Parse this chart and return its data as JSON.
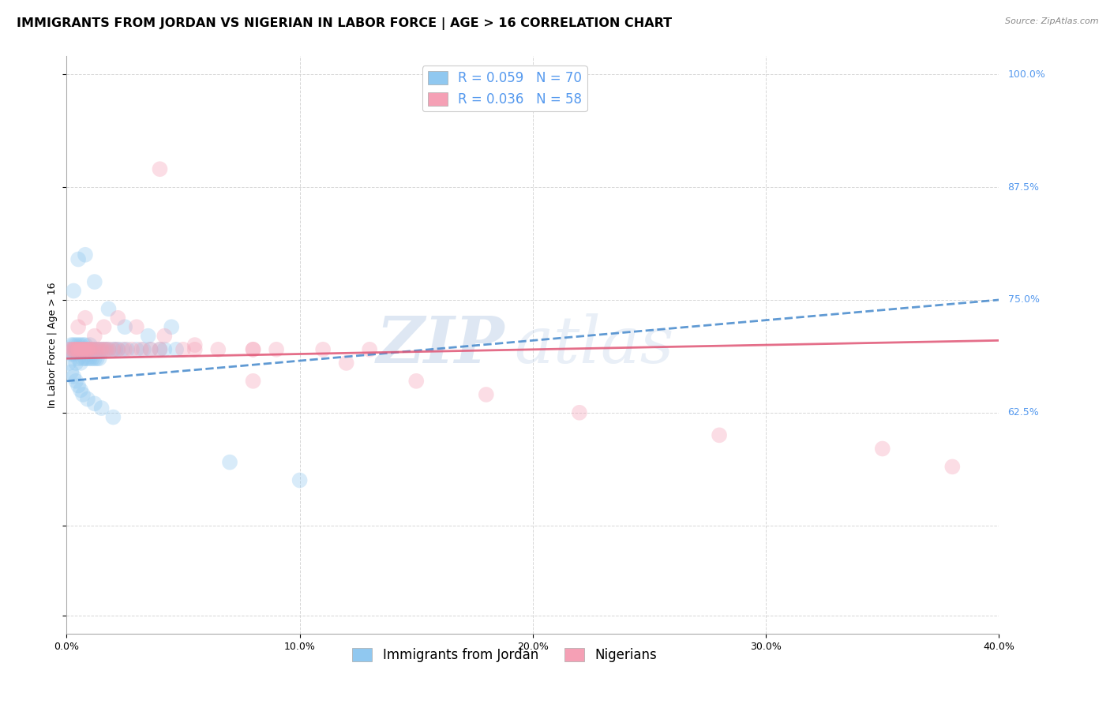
{
  "title": "IMMIGRANTS FROM JORDAN VS NIGERIAN IN LABOR FORCE | AGE > 16 CORRELATION CHART",
  "source": "Source: ZipAtlas.com",
  "ylabel": "In Labor Force | Age > 16",
  "xlim": [
    0.0,
    0.4
  ],
  "ylim": [
    0.38,
    1.02
  ],
  "yticks": [
    0.4,
    0.5,
    0.625,
    0.75,
    0.875,
    1.0
  ],
  "xticks": [
    0.0,
    0.1,
    0.2,
    0.3,
    0.4
  ],
  "jordan_R": "0.059",
  "jordan_N": "70",
  "nigerian_R": "0.036",
  "nigerian_N": "58",
  "jordan_color": "#90C8F0",
  "nigerian_color": "#F5A0B5",
  "jordan_line_color": "#4488CC",
  "nigerian_line_color": "#E05575",
  "right_tick_color": "#5599EE",
  "background_color": "#FFFFFF",
  "grid_color": "#CCCCCC",
  "watermark_zip": "ZIP",
  "watermark_atlas": "atlas",
  "legend1_label": "Immigrants from Jordan",
  "legend2_label": "Nigerians",
  "jordan_x": [
    0.001,
    0.001,
    0.002,
    0.002,
    0.003,
    0.003,
    0.003,
    0.004,
    0.004,
    0.004,
    0.005,
    0.005,
    0.005,
    0.006,
    0.006,
    0.006,
    0.007,
    0.007,
    0.007,
    0.008,
    0.008,
    0.008,
    0.009,
    0.009,
    0.01,
    0.01,
    0.01,
    0.011,
    0.011,
    0.012,
    0.012,
    0.013,
    0.013,
    0.014,
    0.014,
    0.015,
    0.016,
    0.017,
    0.018,
    0.02,
    0.021,
    0.022,
    0.024,
    0.026,
    0.03,
    0.033,
    0.036,
    0.04,
    0.042,
    0.047,
    0.002,
    0.003,
    0.004,
    0.005,
    0.006,
    0.007,
    0.009,
    0.012,
    0.015,
    0.02,
    0.003,
    0.005,
    0.008,
    0.012,
    0.018,
    0.025,
    0.035,
    0.045,
    0.07,
    0.1
  ],
  "jordan_y": [
    0.695,
    0.68,
    0.69,
    0.7,
    0.69,
    0.7,
    0.695,
    0.695,
    0.7,
    0.68,
    0.695,
    0.7,
    0.685,
    0.695,
    0.7,
    0.68,
    0.695,
    0.7,
    0.685,
    0.695,
    0.7,
    0.685,
    0.695,
    0.685,
    0.695,
    0.7,
    0.685,
    0.695,
    0.685,
    0.695,
    0.685,
    0.695,
    0.685,
    0.695,
    0.685,
    0.695,
    0.695,
    0.695,
    0.695,
    0.695,
    0.695,
    0.695,
    0.695,
    0.695,
    0.695,
    0.695,
    0.695,
    0.695,
    0.695,
    0.695,
    0.67,
    0.665,
    0.66,
    0.655,
    0.65,
    0.645,
    0.64,
    0.635,
    0.63,
    0.62,
    0.76,
    0.795,
    0.8,
    0.77,
    0.74,
    0.72,
    0.71,
    0.72,
    0.57,
    0.55
  ],
  "nigerian_x": [
    0.001,
    0.002,
    0.003,
    0.003,
    0.004,
    0.004,
    0.005,
    0.005,
    0.006,
    0.006,
    0.007,
    0.007,
    0.008,
    0.008,
    0.009,
    0.009,
    0.01,
    0.01,
    0.011,
    0.012,
    0.013,
    0.014,
    0.015,
    0.016,
    0.017,
    0.018,
    0.02,
    0.022,
    0.025,
    0.028,
    0.032,
    0.036,
    0.04,
    0.05,
    0.055,
    0.065,
    0.08,
    0.09,
    0.11,
    0.13,
    0.005,
    0.008,
    0.012,
    0.016,
    0.022,
    0.03,
    0.042,
    0.055,
    0.08,
    0.12,
    0.15,
    0.18,
    0.22,
    0.28,
    0.35,
    0.38,
    0.04,
    0.08
  ],
  "nigerian_y": [
    0.695,
    0.695,
    0.695,
    0.695,
    0.695,
    0.695,
    0.695,
    0.695,
    0.695,
    0.695,
    0.695,
    0.695,
    0.695,
    0.695,
    0.695,
    0.695,
    0.695,
    0.695,
    0.695,
    0.695,
    0.695,
    0.695,
    0.695,
    0.695,
    0.695,
    0.695,
    0.695,
    0.695,
    0.695,
    0.695,
    0.695,
    0.695,
    0.695,
    0.695,
    0.695,
    0.695,
    0.695,
    0.695,
    0.695,
    0.695,
    0.72,
    0.73,
    0.71,
    0.72,
    0.73,
    0.72,
    0.71,
    0.7,
    0.695,
    0.68,
    0.66,
    0.645,
    0.625,
    0.6,
    0.585,
    0.565,
    0.895,
    0.66
  ],
  "jordan_trend_x": [
    0.0,
    0.4
  ],
  "jordan_trend_y": [
    0.66,
    0.75
  ],
  "nigerian_trend_x": [
    0.0,
    0.4
  ],
  "nigerian_trend_y": [
    0.685,
    0.705
  ],
  "title_fontsize": 11.5,
  "axis_label_fontsize": 9,
  "tick_fontsize": 9,
  "legend_fontsize": 12,
  "marker_size": 200,
  "marker_alpha": 0.35,
  "line_width": 2.0
}
